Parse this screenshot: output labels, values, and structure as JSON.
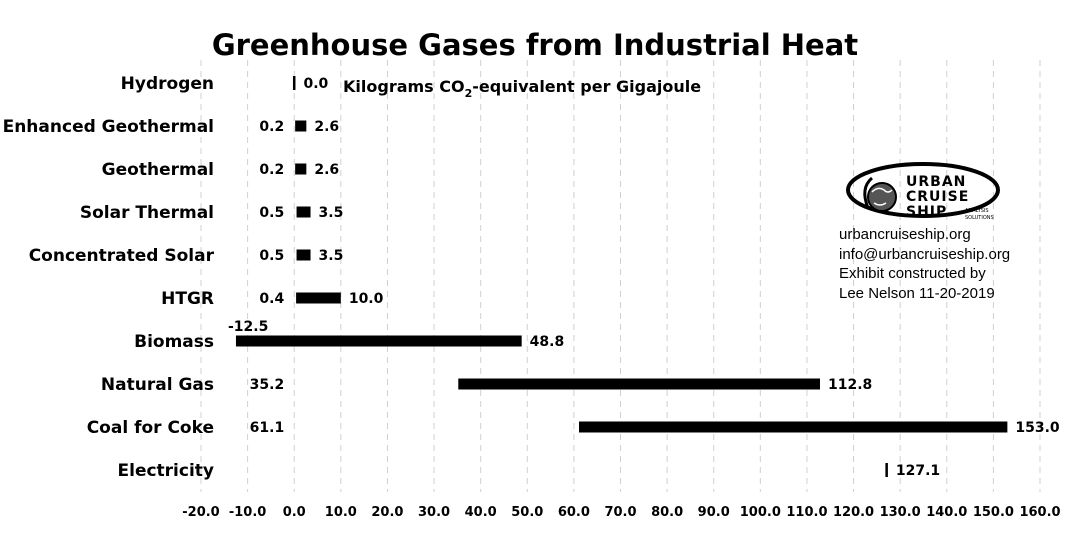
{
  "chart_data": {
    "type": "bar",
    "orientation": "horizontal-range",
    "title": "Greenhouse Gases from Industrial Heat",
    "unit_label_parts": [
      "Kilograms CO",
      "2",
      "-equivalent per Gigajoule"
    ],
    "categories": [
      "Hydrogen",
      "Enhanced Geothermal",
      "Geothermal",
      "Solar Thermal",
      "Concentrated Solar",
      "HTGR",
      "Biomass",
      "Natural Gas",
      "Coal for Coke",
      "Electricity"
    ],
    "series": [
      {
        "low": 0.0,
        "high": 0.0,
        "low_label": "",
        "high_label": "0.0"
      },
      {
        "low": 0.2,
        "high": 2.6,
        "low_label": "0.2",
        "high_label": "2.6"
      },
      {
        "low": 0.2,
        "high": 2.6,
        "low_label": "0.2",
        "high_label": "2.6"
      },
      {
        "low": 0.5,
        "high": 3.5,
        "low_label": "0.5",
        "high_label": "3.5"
      },
      {
        "low": 0.5,
        "high": 3.5,
        "low_label": "0.5",
        "high_label": "3.5"
      },
      {
        "low": 0.4,
        "high": 10.0,
        "low_label": "0.4",
        "high_label": "10.0"
      },
      {
        "low": -12.5,
        "high": 48.8,
        "low_label": "-12.5",
        "high_label": "48.8"
      },
      {
        "low": 35.2,
        "high": 112.8,
        "low_label": "35.2",
        "high_label": "112.8"
      },
      {
        "low": 61.1,
        "high": 153.0,
        "low_label": "61.1",
        "high_label": "153.0"
      },
      {
        "low": 127.1,
        "high": 127.1,
        "low_label": "",
        "high_label": "127.1"
      }
    ],
    "xlim": [
      -20,
      160
    ],
    "x_ticks": [
      "-20.0",
      "-10.0",
      "0.0",
      "10.0",
      "20.0",
      "30.0",
      "40.0",
      "50.0",
      "60.0",
      "70.0",
      "80.0",
      "90.0",
      "100.0",
      "110.0",
      "120.0",
      "130.0",
      "140.0",
      "150.0",
      "160.0"
    ],
    "grid": "vertical-dashed",
    "bar_color": "#000000",
    "grid_color": "#d0d0d0"
  },
  "logo": {
    "words": [
      "URBAN",
      "CRUISE",
      "SHIP"
    ],
    "tagline_parts": [
      "ANALYSIS",
      "SOLUTIONS"
    ]
  },
  "credits": [
    "urbancruiseship.org",
    "info@urbancruiseship.org",
    "Exhibit constructed by",
    "Lee Nelson 11-20-2019"
  ]
}
